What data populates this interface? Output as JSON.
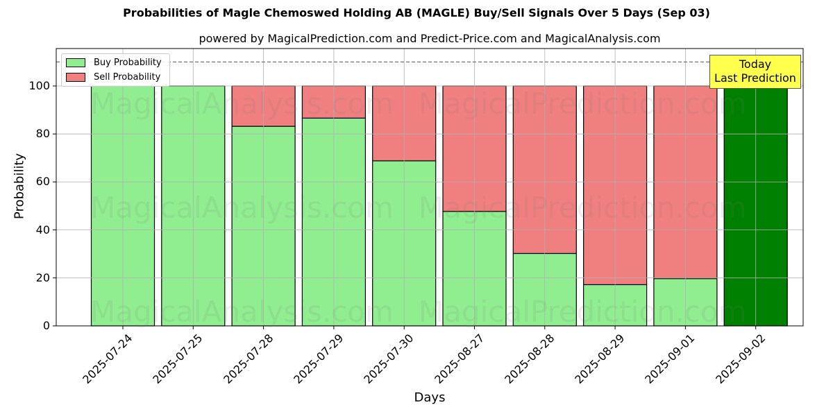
{
  "header": {
    "title": "Probabilities of Magle Chemoswed Holding AB (MAGLE) Buy/Sell Signals Over 5 Days (Sep 03)",
    "subtitle": "powered by MagicalPrediction.com and Predict-Price.com and MagicalAnalysis.com"
  },
  "legend": {
    "buy_label": "Buy Probability",
    "sell_label": "Sell Probability"
  },
  "annotation": {
    "line1": "Today",
    "line2": "Last Prediction"
  },
  "watermarks": [
    "MagicalAnalysis.com",
    "MagicalPrediction.com"
  ],
  "axes": {
    "xlabel": "Days",
    "ylabel": "Probability",
    "yticks": [
      "0",
      "20",
      "40",
      "60",
      "80",
      "100"
    ]
  },
  "colors": {
    "buy": "#90ee90",
    "sell": "#f08080",
    "today_buy": "#008000",
    "annotation_bg": "#ffff4d"
  },
  "chart_data": {
    "type": "bar",
    "stacked": true,
    "title": "Probabilities of Magle Chemoswed Holding AB (MAGLE) Buy/Sell Signals Over 5 Days (Sep 03)",
    "subtitle": "powered by MagicalPrediction.com and Predict-Price.com and MagicalAnalysis.com",
    "xlabel": "Days",
    "ylabel": "Probability",
    "ylim": [
      0,
      115
    ],
    "yticks": [
      0,
      20,
      40,
      60,
      80,
      100
    ],
    "grid": true,
    "legend_position": "upper left",
    "reference_line": {
      "y": 110,
      "style": "dashed"
    },
    "categories": [
      "2025-07-24",
      "2025-07-25",
      "2025-07-28",
      "2025-07-29",
      "2025-07-30",
      "2025-08-27",
      "2025-08-28",
      "2025-08-29",
      "2025-09-01",
      "2025-09-02"
    ],
    "series": [
      {
        "name": "Buy Probability",
        "values": [
          100,
          100,
          83.2,
          86.6,
          68.8,
          47.7,
          30.2,
          17.2,
          19.7,
          100
        ]
      },
      {
        "name": "Sell Probability",
        "values": [
          0,
          0,
          16.8,
          13.4,
          31.2,
          52.3,
          69.8,
          82.8,
          80.3,
          0
        ]
      }
    ],
    "annotations": [
      {
        "text": "Today\nLast Prediction",
        "x": "2025-09-02"
      }
    ]
  }
}
